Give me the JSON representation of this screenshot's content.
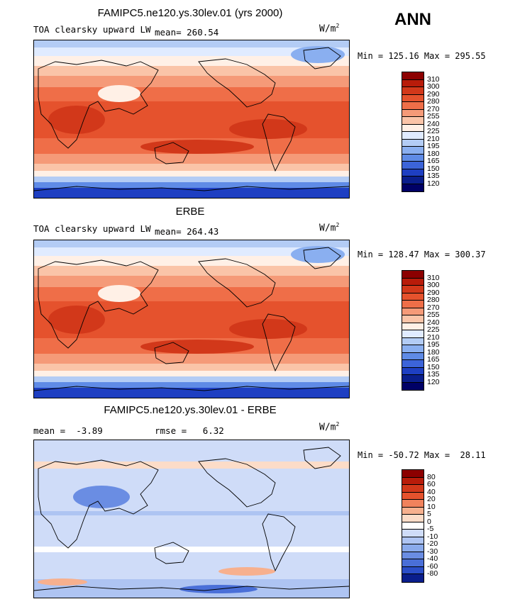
{
  "season": "ANN",
  "panels": [
    {
      "title": "FAMIPC5.ne120.ys.30lev.01 (yrs 2000)",
      "left_text": "TOA clearsky upward LW",
      "right_text": "mean= 260.54",
      "units": "W/m",
      "units_exp": "2",
      "min_max": "Min = 125.16 Max = 295.55",
      "type": "field",
      "colorbar_labels": [
        "310",
        "300",
        "290",
        "280",
        "270",
        "255",
        "240",
        "225",
        "210",
        "195",
        "180",
        "165",
        "150",
        "135",
        "120"
      ]
    },
    {
      "title": "ERBE",
      "left_text": "TOA clearsky upward LW",
      "right_text": "mean= 264.43",
      "units": "W/m",
      "units_exp": "2",
      "min_max": "Min = 128.47 Max = 300.37",
      "type": "field",
      "colorbar_labels": [
        "310",
        "300",
        "290",
        "280",
        "270",
        "255",
        "240",
        "225",
        "210",
        "195",
        "180",
        "165",
        "150",
        "135",
        "120"
      ]
    },
    {
      "title": "FAMIPC5.ne120.ys.30lev.01 - ERBE",
      "left_text": "mean =  -3.89",
      "right_text": "rmse =   6.32",
      "units": "W/m",
      "units_exp": "2",
      "min_max": "Min = -50.72 Max =  28.11",
      "type": "diff",
      "colorbar_labels": [
        "80",
        "60",
        "40",
        "20",
        "10",
        "5",
        "0",
        "-5",
        "-10",
        "-20",
        "-30",
        "-40",
        "-60",
        "-80"
      ]
    }
  ],
  "palette": {
    "field": [
      "#8c0000",
      "#b81c0a",
      "#d2381a",
      "#e5522d",
      "#ef6e48",
      "#f59a78",
      "#fac4a8",
      "#fff0e6",
      "#e0ebff",
      "#b3ccf5",
      "#8aaff0",
      "#5f8be6",
      "#3c64d9",
      "#1e3fc2",
      "#0a1e8c",
      "#000066"
    ],
    "diff": [
      "#8c0000",
      "#b81c0a",
      "#d2381a",
      "#e5522d",
      "#f0825c",
      "#f7b08e",
      "#fcdcc8",
      "#ffffff",
      "#cfdcf8",
      "#aec4f2",
      "#8aaaeb",
      "#6a8de3",
      "#4a6fd8",
      "#2b4ec8",
      "#0a1e8c"
    ]
  }
}
